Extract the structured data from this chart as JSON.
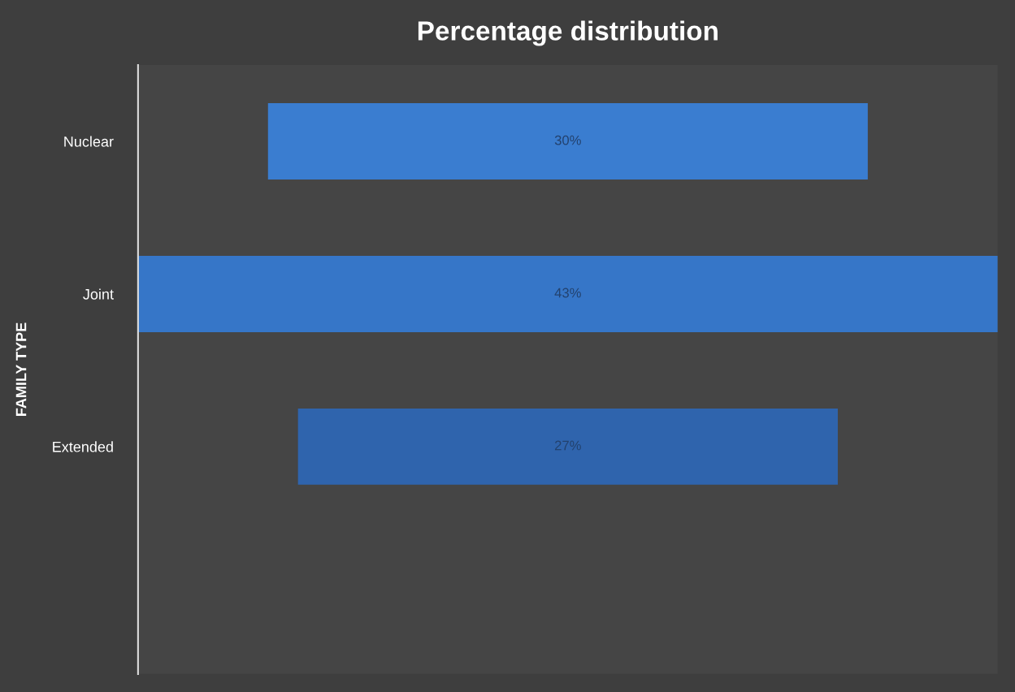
{
  "chart_data": {
    "type": "other",
    "title": "Percentage distribution",
    "ylabel": "FAMILY TYPE",
    "categories": [
      "Nuclear",
      "Joint",
      "Extended"
    ],
    "values": [
      30,
      43,
      27
    ],
    "colors": [
      "#3a7dd0",
      "#3676c8",
      "#2f64ad"
    ],
    "value_labels": [
      "30%",
      "43%",
      "27%"
    ],
    "legend": false
  }
}
